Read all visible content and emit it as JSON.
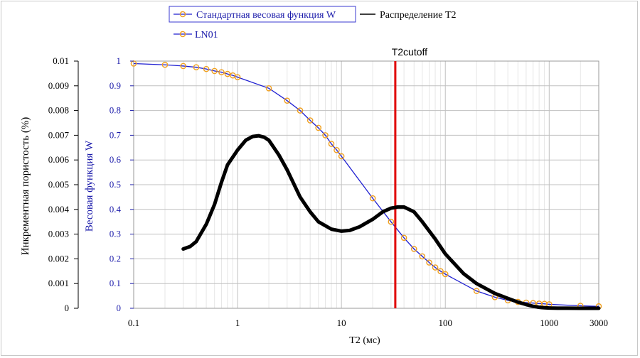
{
  "colors": {
    "weight_line": "#1f1fd1",
    "weight_marker": "#f0a020",
    "distribution": "#000000",
    "cutoff": "#e00000",
    "grid_major": "#c0c0c0",
    "grid_minor": "#e6e6e6",
    "left_axis_text": "#000000",
    "right_axis_text": "#1a1aaa"
  },
  "chart_data": {
    "type": "line",
    "xlabel": "T2 (мс)",
    "x_scale": "log",
    "xlim": [
      0.1,
      3000
    ],
    "x_ticks": [
      0.1,
      1,
      10,
      100,
      1000,
      3000
    ],
    "x_tick_labels": [
      "0.1",
      "1",
      "10",
      "100",
      "1000",
      "3000"
    ],
    "y_left": {
      "label": "Инкрементная пористость (%)",
      "lim": [
        0,
        0.01
      ],
      "ticks": [
        0,
        0.001,
        0.002,
        0.003,
        0.004,
        0.005,
        0.006,
        0.007,
        0.008,
        0.009,
        0.01
      ],
      "tick_labels": [
        "0",
        "0.001",
        "0.002",
        "0.003",
        "0.004",
        "0.005",
        "0.006",
        "0.007",
        "0.008",
        "0.009",
        "0.01"
      ]
    },
    "y_right": {
      "label": "Весовая функция W",
      "lim": [
        0,
        1
      ],
      "ticks": [
        0,
        0.1,
        0.2,
        0.3,
        0.4,
        0.5,
        0.6,
        0.7,
        0.8,
        0.9,
        1
      ],
      "tick_labels": [
        "0",
        "0.1",
        "0.2",
        "0.3",
        "0.4",
        "0.5",
        "0.6",
        "0.7",
        "0.8",
        "0.9",
        "1"
      ]
    },
    "grid": true,
    "legend_position": "top",
    "legend": [
      {
        "label": "Стандартная весовая функция W",
        "style": "line-marker"
      },
      {
        "label": "Распределение T2",
        "style": "line"
      },
      {
        "label": "LN01",
        "style": "line-marker"
      }
    ],
    "annotations": [
      {
        "text": "T2cutoff",
        "x": 33
      }
    ],
    "series": [
      {
        "name": "Стандартная весовая функция W",
        "axis": "right",
        "x": [
          0.1,
          0.2,
          0.3,
          0.4,
          0.5,
          0.6,
          0.7,
          0.8,
          0.9,
          1,
          2,
          3,
          4,
          5,
          6,
          7,
          8,
          9,
          10,
          20,
          30,
          40,
          50,
          60,
          70,
          80,
          90,
          100,
          200,
          300,
          400,
          500,
          600,
          700,
          800,
          900,
          1000,
          2000,
          3000
        ],
        "y": [
          0.99,
          0.985,
          0.98,
          0.975,
          0.968,
          0.96,
          0.955,
          0.948,
          0.942,
          0.935,
          0.89,
          0.84,
          0.8,
          0.76,
          0.73,
          0.7,
          0.665,
          0.64,
          0.615,
          0.445,
          0.35,
          0.285,
          0.24,
          0.21,
          0.185,
          0.165,
          0.15,
          0.138,
          0.07,
          0.045,
          0.032,
          0.026,
          0.023,
          0.021,
          0.019,
          0.018,
          0.016,
          0.01,
          0.008
        ]
      },
      {
        "name": "Распределение T2",
        "axis": "left",
        "x": [
          0.3,
          0.35,
          0.4,
          0.5,
          0.6,
          0.7,
          0.8,
          1.0,
          1.2,
          1.4,
          1.6,
          1.8,
          2.0,
          2.5,
          3,
          4,
          5,
          6,
          8,
          10,
          12,
          15,
          20,
          25,
          30,
          35,
          40,
          50,
          60,
          80,
          100,
          150,
          200,
          300,
          400,
          500,
          600,
          700,
          800,
          900,
          1000,
          1200,
          1500,
          2000,
          2500,
          3000
        ],
        "y": [
          0.0024,
          0.0025,
          0.0027,
          0.0034,
          0.0042,
          0.0051,
          0.0058,
          0.0064,
          0.0068,
          0.00695,
          0.00698,
          0.00692,
          0.0068,
          0.0062,
          0.0056,
          0.0045,
          0.0039,
          0.0035,
          0.0032,
          0.00312,
          0.00315,
          0.0033,
          0.0036,
          0.0039,
          0.00405,
          0.0041,
          0.0041,
          0.0039,
          0.0035,
          0.0028,
          0.0022,
          0.0014,
          0.001,
          0.0006,
          0.0004,
          0.00025,
          0.00015,
          8e-05,
          4e-05,
          2e-05,
          1e-05,
          5e-06,
          2e-06,
          1e-06,
          5e-07,
          0.0
        ]
      },
      {
        "name": "LN01",
        "axis": "right",
        "x": [
          0.1,
          3000
        ],
        "y": [
          0.99,
          0.008
        ]
      }
    ]
  }
}
